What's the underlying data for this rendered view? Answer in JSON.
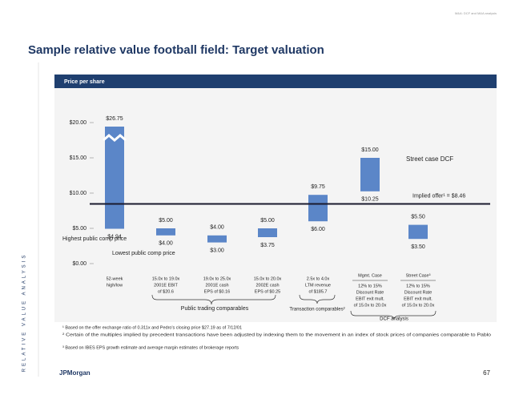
{
  "header_note": "M&A: DCF and M&A analysis",
  "side_label": "RELATIVE VALUE ANALYSIS",
  "footer": {
    "logo": "JPMorgan",
    "page": "67"
  },
  "footnotes": [
    "¹ Based on the offer exchange ratio of 0.311x and Pedro's closing price $27.19 as of 7/12/01",
    "² Certain of the multiples implied by precedent transactions have been adjusted by indexing them to the movement in an index of stock prices of companies comparable to Pablo",
    "³ Based on IBES EPS growth estimate and average margin estimates of brokerage reports"
  ],
  "chart_data": {
    "type": "floating_bar",
    "title": "Sample relative value football field: Target valuation",
    "subtitle": "Price per share",
    "color": "#5b86c8",
    "ylim": [
      0,
      20
    ],
    "yticks": [
      {
        "value": 0,
        "label": "$0.00"
      },
      {
        "value": 5,
        "label": "$5.00"
      },
      {
        "value": 10,
        "label": "$10.00"
      },
      {
        "value": 15,
        "label": "$15.00"
      },
      {
        "value": 20,
        "label": "$20.00"
      }
    ],
    "categories": [
      [
        "52-week",
        "high/low"
      ],
      [
        "15.0x to 19.0x",
        "2001E EBIT",
        "of $20.6"
      ],
      [
        "19.0x to 25.0x",
        "2001E cash",
        "EPS of $0.16"
      ],
      [
        "15.0x to 20.0x",
        "2002E cash",
        "EPS of $0.25"
      ],
      [
        "2.5x to 4.0x",
        "LTM revenue",
        "of $185.7"
      ],
      [
        "12% to 15%",
        "Discount Rate",
        "EBIT exit mult.",
        "of 15.0x to 20.0x"
      ],
      [
        "12% to 15%",
        "Discount Rate",
        "EBIT exit mult.",
        "of 15.0x to 20.0x"
      ]
    ],
    "low": [
      4.94,
      4.0,
      3.0,
      3.75,
      6.0,
      10.25,
      3.5
    ],
    "high": [
      26.75,
      5.0,
      4.0,
      5.0,
      9.75,
      15.0,
      5.5
    ],
    "low_labels": [
      "$4.94",
      "$4.00",
      "$3.00",
      "$3.75",
      "$6.00",
      "$10.25",
      "$3.50"
    ],
    "high_labels": [
      "$26.75",
      "$5.00",
      "$4.00",
      "$5.00",
      "$9.75",
      "$15.00",
      "$5.50"
    ],
    "case_headers": [
      "Mgmt. Case",
      "Street Case³"
    ],
    "groups": [
      "Public trading comparables",
      "Transaction comparables²",
      "DCF analysis"
    ],
    "reference_line": {
      "value": 8.46,
      "label": "Implied offer¹ = $8.46"
    },
    "annotations": [
      "Street case DCF",
      "Highest public comp price",
      "Lowest public comp price"
    ]
  }
}
